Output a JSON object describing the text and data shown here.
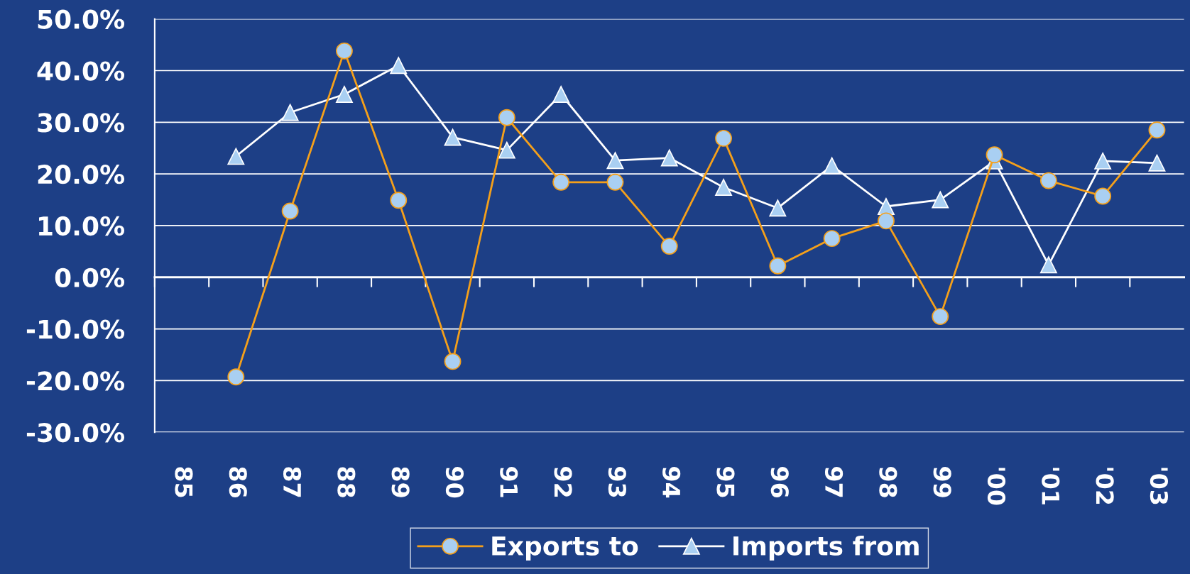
{
  "chart_data": {
    "type": "line",
    "categories": [
      "85",
      "86",
      "87",
      "88",
      "89",
      "90",
      "91",
      "92",
      "93",
      "94",
      "95",
      "96",
      "97",
      "98",
      "99",
      "'00",
      "'01",
      "'02",
      "'03"
    ],
    "series": [
      {
        "name": "Exports to",
        "color": "#f5a01a",
        "values": [
          null,
          -19.3,
          12.8,
          43.8,
          14.9,
          -16.3,
          30.9,
          18.4,
          18.4,
          6.0,
          26.9,
          2.2,
          7.5,
          10.9,
          -7.6,
          23.7,
          18.7,
          15.7,
          28.5
        ],
        "marker": "circle"
      },
      {
        "name": "Imports from",
        "color": "#ffffff",
        "values": [
          null,
          23.4,
          31.9,
          35.4,
          41.0,
          27.1,
          24.6,
          35.4,
          22.6,
          23.1,
          17.4,
          13.4,
          21.6,
          13.7,
          15.0,
          22.5,
          2.4,
          22.5,
          22.1
        ],
        "marker": "triangle"
      }
    ],
    "ylim": [
      -30,
      50
    ],
    "yticks": [
      {
        "value": -30,
        "label": "-30.0%"
      },
      {
        "value": -20,
        "label": "-20.0%"
      },
      {
        "value": -10,
        "label": "-10.0%"
      },
      {
        "value": 0,
        "label": "0.0%"
      },
      {
        "value": 10,
        "label": "10.0%"
      },
      {
        "value": 20,
        "label": "20.0%"
      },
      {
        "value": 30,
        "label": "30.0%"
      },
      {
        "value": 40,
        "label": "40.0%"
      },
      {
        "value": 50,
        "label": "50.0%"
      }
    ],
    "grid": "y",
    "legend": "bottom",
    "line_style": "solid"
  }
}
